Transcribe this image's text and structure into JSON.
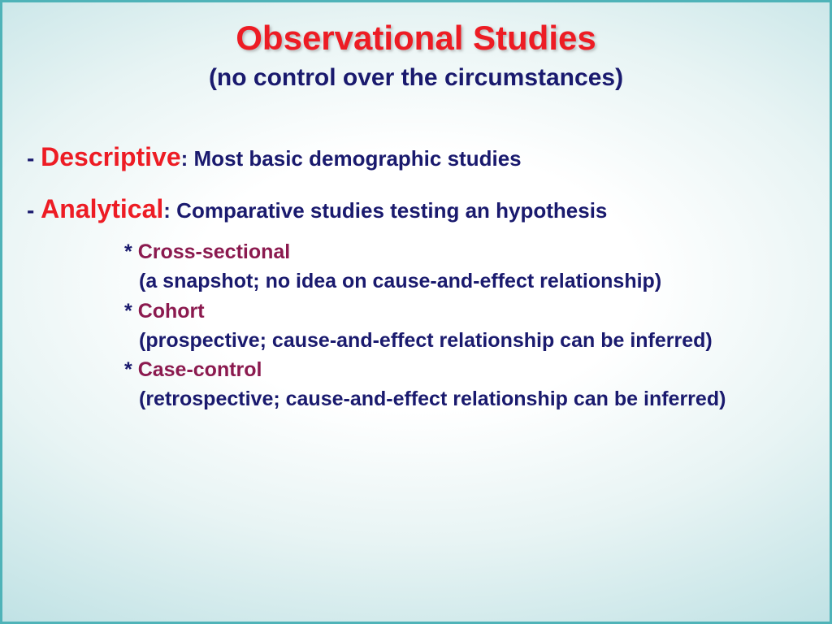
{
  "colors": {
    "title_red": "#ed1c24",
    "navy": "#1a1a6e",
    "purple": "#8b1a4f",
    "dark_purple": "#6b1847"
  },
  "title": "Observational Studies",
  "subtitle": "(no control over the circumstances)",
  "item1": {
    "dash": "- ",
    "category": "Descriptive",
    "desc": ": Most basic demographic studies"
  },
  "item2": {
    "dash": "- ",
    "category": "Analytical",
    "desc": ": Comparative studies testing an hypothesis",
    "subs": [
      {
        "star": "* ",
        "label": "Cross-sectional",
        "desc": "(a snapshot; no idea on cause-and-effect relationship)"
      },
      {
        "star": "* ",
        "label": "Cohort",
        "desc": "(prospective; cause-and-effect relationship can be inferred)"
      },
      {
        "star": "* ",
        "label": "Case-control",
        "desc": "(retrospective; cause-and-effect relationship can be inferred)"
      }
    ]
  }
}
